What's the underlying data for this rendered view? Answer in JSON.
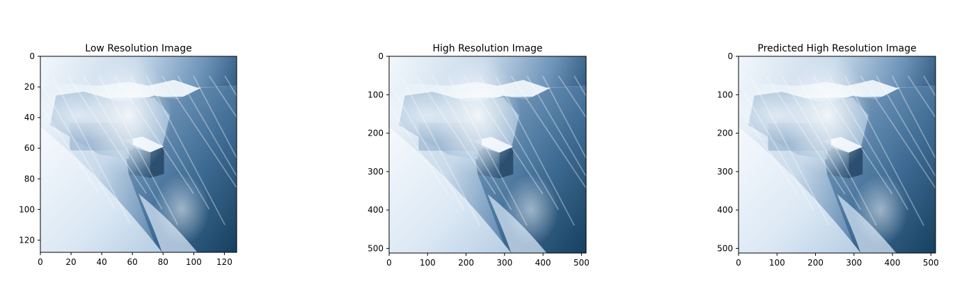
{
  "chart_data": [
    {
      "type": "image",
      "title": "Low Resolution Image",
      "xlim": [
        0,
        128
      ],
      "ylim": [
        128,
        0
      ],
      "xticks": [
        0,
        20,
        40,
        60,
        80,
        100,
        120
      ],
      "yticks": [
        0,
        20,
        40,
        60,
        80,
        100,
        120
      ],
      "y_inverted": true,
      "grid": false
    },
    {
      "type": "image",
      "title": "High Resolution Image",
      "xlim": [
        0,
        512
      ],
      "ylim": [
        512,
        0
      ],
      "xticks": [
        0,
        100,
        200,
        300,
        400,
        500
      ],
      "yticks": [
        0,
        100,
        200,
        300,
        400,
        500
      ],
      "y_inverted": true,
      "grid": false
    },
    {
      "type": "image",
      "title": "Predicted High Resolution Image",
      "xlim": [
        0,
        512
      ],
      "ylim": [
        512,
        0
      ],
      "xticks": [
        0,
        100,
        200,
        300,
        400,
        500
      ],
      "yticks": [
        0,
        100,
        200,
        300,
        400,
        500
      ],
      "y_inverted": true,
      "grid": false
    }
  ],
  "colors": {
    "sky": "#eef4fa",
    "snow": "#e3eef8",
    "mid_blue": "#9ebcd8",
    "dark_blue": "#1f4a72",
    "house": "#5f7f9f"
  }
}
